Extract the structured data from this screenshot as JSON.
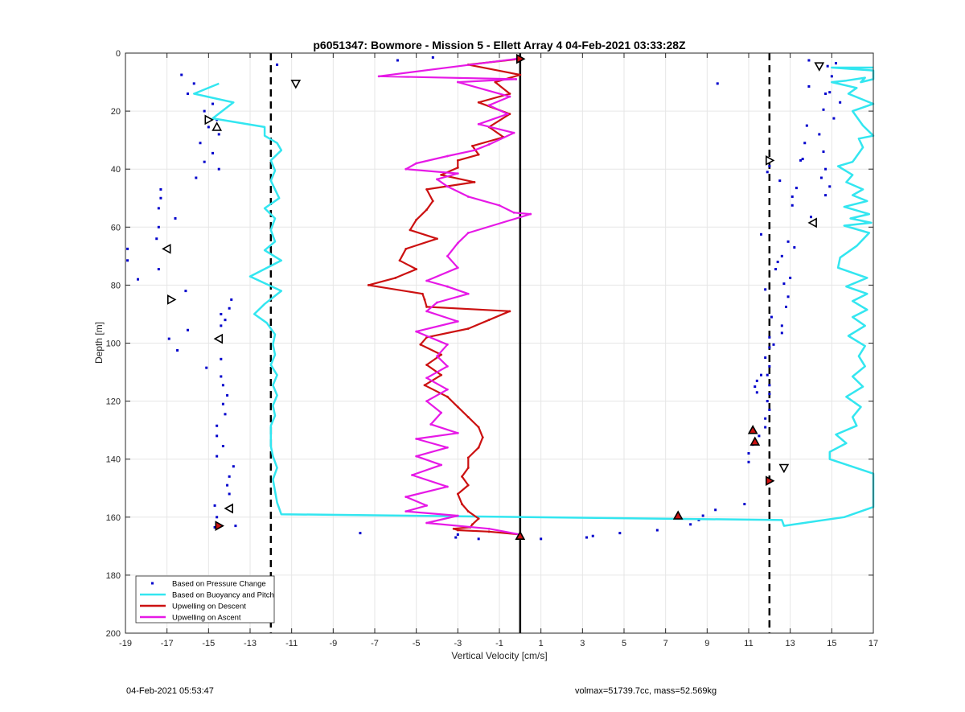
{
  "chart_data": {
    "type": "line",
    "title": "p6051347: Bowmore - Mission 5 - Ellett Array 4 04-Feb-2021 03:33:28Z",
    "xlabel": "Vertical Velocity [cm/s]",
    "ylabel": "Depth [m]",
    "xlim": [
      -19,
      17
    ],
    "ylim": [
      0,
      200
    ],
    "y_reversed": true,
    "grid": true,
    "xticks": [
      -19,
      -17,
      -15,
      -13,
      -11,
      -9,
      -7,
      -5,
      -3,
      -1,
      1,
      3,
      5,
      7,
      9,
      11,
      13,
      15,
      17
    ],
    "yticks": [
      0,
      20,
      40,
      60,
      80,
      100,
      120,
      140,
      160,
      180,
      200
    ],
    "legend_position": "bottom-left",
    "colors": {
      "pressure": "#0000cc",
      "buoyancy": "#33e6f0",
      "descent": "#cc1111",
      "ascent": "#e619e6",
      "reference": "#000000"
    },
    "reference_lines": [
      {
        "x": 0,
        "style": "solid"
      },
      {
        "x": -12,
        "style": "dashed"
      },
      {
        "x": 12,
        "style": "dashed"
      }
    ],
    "series": [
      {
        "name": "Based on Pressure Change",
        "style": "dots",
        "x": [
          -11.7,
          -16.3,
          -15.7,
          -16.0,
          -14.8,
          -15.2,
          -14.6,
          -15.0,
          -14.5,
          -15.4,
          -14.8,
          -15.2,
          -14.5,
          -15.6,
          -17.3,
          -17.3,
          -17.4,
          -16.6,
          -17.4,
          -17.5,
          -18.9,
          -18.9,
          -17.4,
          -18.4,
          -13.9,
          -16.1,
          -14.0,
          -14.4,
          -14.2,
          -14.4,
          -16.0,
          -16.9,
          -16.5,
          -14.4,
          -15.1,
          -14.4,
          -14.3,
          -14.1,
          -14.3,
          -14.2,
          -14.6,
          -14.6,
          -14.3,
          -14.6,
          -13.8,
          -14.0,
          -14.1,
          -14.0,
          -14.7,
          -14.6,
          -13.7,
          -7.7,
          -3.1,
          -3.0,
          -2.0,
          1.0,
          3.2,
          3.5,
          4.8,
          6.6,
          8.2,
          8.6,
          8.8,
          9.4,
          10.8,
          11.0,
          11.0,
          11.2,
          11.5,
          11.8,
          11.8,
          12.0,
          11.9,
          12.0,
          12.0,
          11.9,
          12.0,
          11.8,
          11.6,
          11.4,
          11.3,
          11.4,
          12.0,
          12.2,
          12.0,
          12.6,
          12.6,
          12.1,
          12.8,
          12.9,
          11.8,
          12.7,
          13.0,
          12.3,
          12.4,
          12.6,
          13.2,
          12.9,
          11.6,
          12.5,
          11.9,
          12.0,
          13.5,
          13.3,
          13.1,
          13.1,
          14.0,
          14.7,
          14.9,
          14.5,
          14.7,
          13.6,
          14.6,
          13.7,
          14.4,
          13.8,
          15.1,
          14.6,
          15.4,
          14.7,
          13.9,
          9.5,
          13.9,
          15.0,
          14.8,
          15.2,
          14.9,
          -5.9,
          -4.2,
          -14.7
        ],
        "y": [
          4.0,
          7.5,
          10.5,
          14.0,
          17.5,
          20.0,
          23.0,
          25.5,
          28.0,
          31.0,
          34.5,
          37.5,
          40.0,
          43.0,
          47.0,
          50.0,
          53.5,
          57.0,
          60.0,
          64.0,
          67.5,
          71.5,
          74.5,
          78.0,
          85.0,
          82.0,
          88.0,
          90.0,
          92.0,
          94.0,
          95.5,
          98.5,
          102.5,
          105.5,
          108.5,
          111.5,
          114.5,
          118.0,
          121.0,
          124.5,
          128.5,
          132.0,
          135.5,
          139.0,
          142.5,
          146.0,
          149.0,
          152.0,
          156.0,
          160.0,
          163.0,
          165.5,
          167.0,
          166.0,
          167.5,
          167.5,
          167.0,
          166.5,
          165.5,
          164.5,
          162.5,
          161.0,
          159.5,
          157.5,
          155.5,
          141.0,
          138.0,
          135.0,
          132.0,
          129.0,
          126.0,
          123.0,
          120.0,
          117.5,
          114.5,
          111.0,
          108.0,
          105.0,
          111.0,
          113.0,
          115.0,
          117.0,
          101.5,
          100.5,
          98.0,
          96.5,
          94.0,
          91.0,
          87.5,
          84.0,
          81.5,
          79.5,
          77.5,
          74.5,
          72.0,
          70.0,
          67.0,
          65.0,
          62.5,
          44.0,
          41.0,
          39.0,
          37.0,
          46.5,
          49.5,
          52.5,
          56.5,
          49.0,
          46.0,
          43.0,
          40.0,
          36.5,
          34.0,
          31.0,
          28.0,
          25.0,
          22.5,
          19.5,
          17.0,
          14.0,
          11.5,
          10.5,
          2.5,
          8.0,
          4.5,
          3.5,
          13.5,
          2.5,
          1.5,
          163.5
        ]
      },
      {
        "name": "Based on Buoyancy and Pitch",
        "style": "line",
        "x": [
          -14.5,
          -15.7,
          -13.8,
          -14.8,
          -12.3,
          -12.3,
          -11.7,
          -11.5,
          -12.0,
          -11.8,
          -12.0,
          -11.8,
          -11.6,
          -12.3,
          -11.8,
          -12.0,
          -11.8,
          -12.3,
          -11.5,
          -13.0,
          -11.5,
          -12.3,
          -12.8,
          -12.2,
          -11.8,
          -11.9,
          -11.8,
          -12.0,
          -11.7,
          -11.9,
          -11.7,
          -11.9,
          -11.8,
          -12.0,
          -12.0,
          -12.0,
          -11.9,
          -11.7,
          -11.9,
          -11.8,
          -11.7,
          -11.5,
          12.6,
          12.7,
          15.6,
          17.0,
          17.0,
          14.9,
          14.9,
          15.7,
          15.2,
          16.2,
          16.0,
          16.4,
          15.7,
          16.5,
          16.0,
          16.6,
          16.3,
          16.6,
          15.8,
          16.6,
          16.0,
          16.7,
          16.0,
          16.7,
          15.7,
          16.7,
          15.3,
          15.4,
          16.2,
          16.8,
          15.6,
          16.9,
          15.9,
          16.8,
          15.6,
          16.7,
          16.0,
          16.5,
          15.7,
          16.0,
          15.3,
          16.0,
          16.1,
          16.5,
          16.3,
          17.0,
          16.5,
          16.0,
          17.0,
          15.8,
          16.2,
          15.0,
          15.7,
          16.6,
          16.4,
          17.0,
          17.0,
          15.0,
          15.2,
          17.0
        ],
        "y": [
          10.5,
          14.0,
          17.0,
          22.5,
          25.5,
          28.5,
          31.0,
          33.5,
          37.0,
          40.5,
          44.0,
          47.0,
          50.0,
          53.5,
          57.0,
          61.0,
          65.0,
          68.0,
          71.5,
          77.0,
          82.0,
          86.5,
          90.0,
          93.0,
          97.0,
          100.5,
          104.0,
          107.5,
          111.0,
          114.5,
          118.0,
          121.5,
          125.0,
          128.5,
          132.0,
          135.5,
          139.0,
          143.0,
          147.0,
          151.0,
          155.0,
          159.0,
          161.0,
          163.0,
          160.0,
          156.5,
          145.0,
          140.0,
          137.5,
          134.5,
          131.5,
          128.5,
          125.5,
          122.0,
          118.5,
          115.0,
          111.5,
          108.0,
          104.5,
          101.0,
          97.5,
          94.0,
          91.0,
          88.5,
          85.5,
          83.0,
          80.5,
          77.5,
          74.0,
          70.5,
          66.5,
          62.0,
          59.5,
          58.5,
          57.0,
          55.5,
          53.0,
          51.0,
          49.0,
          47.0,
          44.5,
          42.0,
          39.0,
          37.5,
          36.5,
          32.5,
          29.5,
          28.5,
          25.0,
          20.0,
          17.5,
          14.0,
          12.0,
          10.0,
          9.5,
          8.5,
          10.0,
          9.0,
          6.0,
          5.0,
          5.0,
          5.0
        ]
      },
      {
        "name": "Upwelling on Descent",
        "style": "line",
        "x": [
          0.0,
          -2.5,
          0.0,
          -1.2,
          -0.5,
          -2.0,
          -0.5,
          -1.5,
          -0.8,
          -2.3,
          -2.0,
          -3.0,
          -3.0,
          -3.8,
          -2.2,
          -4.5,
          -4.2,
          -4.5,
          -5.0,
          -5.3,
          -4.0,
          -5.5,
          -5.8,
          -5.0,
          -6.0,
          -7.3,
          -4.7,
          -4.6,
          -4.5,
          -0.5,
          -1.5,
          -2.5,
          -4.5,
          -4.8,
          -3.8,
          -4.5,
          -3.8,
          -4.6,
          -3.5,
          -3.0,
          -2.5,
          -2.0,
          -1.8,
          -2.0,
          -2.5,
          -2.5,
          -2.8,
          -2.5,
          -3.0,
          -2.8,
          -2.5,
          -2.0,
          -2.3,
          -2.4,
          -3.2,
          -3.0,
          -1.5,
          0.0
        ],
        "y": [
          2.0,
          4.0,
          7.5,
          10.0,
          14.0,
          17.0,
          21.0,
          25.5,
          29.0,
          32.0,
          35.0,
          37.0,
          39.5,
          42.0,
          44.5,
          47.0,
          51.0,
          54.0,
          57.5,
          61.0,
          64.0,
          67.5,
          71.5,
          74.5,
          77.5,
          80.0,
          83.0,
          85.0,
          87.5,
          89.0,
          92.0,
          95.0,
          98.0,
          100.5,
          104.0,
          107.5,
          111.0,
          114.5,
          118.5,
          122.0,
          125.5,
          129.0,
          132.5,
          136.0,
          139.5,
          143.0,
          146.0,
          149.0,
          152.0,
          155.5,
          158.0,
          160.5,
          162.5,
          163.5,
          164.0,
          164.5,
          165.0,
          166.0
        ]
      },
      {
        "name": "Upwelling on Ascent",
        "style": "line",
        "x": [
          -0.2,
          -6.8,
          -0.2,
          -3.0,
          -0.5,
          -1.5,
          -0.6,
          -2.0,
          -0.3,
          -1.5,
          -2.2,
          -3.5,
          -5.0,
          -5.5,
          -3.0,
          -4.0,
          -3.5,
          -2.5,
          -1.0,
          -0.3,
          0.5,
          -2.5,
          -3.0,
          -3.5,
          -3.0,
          -4.5,
          -3.5,
          -2.5,
          -4.0,
          -4.5,
          -3.0,
          -5.0,
          -3.5,
          -4.0,
          -3.5,
          -4.5,
          -3.5,
          -4.5,
          -3.8,
          -4.3,
          -3.0,
          -5.0,
          -3.5,
          -5.0,
          -3.8,
          -5.2,
          -3.5,
          -5.5,
          -4.5,
          -5.5,
          -3.0,
          -4.5,
          -1.5,
          0.0
        ],
        "y": [
          2.0,
          8.0,
          9.0,
          10.0,
          15.0,
          18.0,
          21.0,
          24.5,
          27.5,
          31.5,
          33.5,
          35.5,
          38.0,
          40.0,
          41.5,
          43.5,
          46.0,
          49.5,
          52.5,
          55.0,
          55.5,
          62.0,
          65.5,
          70.0,
          74.0,
          78.5,
          80.5,
          83.0,
          86.0,
          89.0,
          92.5,
          96.0,
          100.5,
          104.5,
          108.0,
          112.0,
          116.0,
          120.0,
          124.0,
          128.0,
          131.0,
          133.0,
          136.0,
          139.0,
          142.0,
          145.5,
          149.5,
          153.0,
          156.0,
          158.0,
          159.5,
          162.0,
          164.0,
          166.0
        ]
      }
    ],
    "markers": [
      {
        "x": 0.0,
        "y": 2,
        "shape": "tri-right",
        "fill": "#cc1111"
      },
      {
        "x": -10.8,
        "y": 10.5,
        "shape": "tri-down",
        "fill": "none"
      },
      {
        "x": -15.0,
        "y": 23,
        "shape": "tri-right",
        "fill": "none"
      },
      {
        "x": -14.6,
        "y": 25.5,
        "shape": "tri-up",
        "fill": "none"
      },
      {
        "x": -17.0,
        "y": 67.5,
        "shape": "tri-left",
        "fill": "none"
      },
      {
        "x": -16.8,
        "y": 85,
        "shape": "tri-right",
        "fill": "none"
      },
      {
        "x": -14.5,
        "y": 98.5,
        "shape": "tri-left",
        "fill": "none"
      },
      {
        "x": -14.0,
        "y": 157,
        "shape": "tri-left",
        "fill": "none"
      },
      {
        "x": -14.5,
        "y": 163,
        "shape": "tri-right",
        "fill": "#cc1111"
      },
      {
        "x": 0.0,
        "y": 166.5,
        "shape": "tri-up",
        "fill": "#cc1111"
      },
      {
        "x": 7.6,
        "y": 159.5,
        "shape": "tri-up",
        "fill": "#cc1111"
      },
      {
        "x": 11.2,
        "y": 130,
        "shape": "tri-up",
        "fill": "#cc1111"
      },
      {
        "x": 11.3,
        "y": 134,
        "shape": "tri-up",
        "fill": "#cc1111"
      },
      {
        "x": 12.7,
        "y": 143,
        "shape": "tri-down",
        "fill": "none"
      },
      {
        "x": 12.0,
        "y": 147.5,
        "shape": "tri-right",
        "fill": "#cc1111"
      },
      {
        "x": 12.0,
        "y": 37,
        "shape": "tri-right",
        "fill": "none"
      },
      {
        "x": 14.1,
        "y": 58.5,
        "shape": "tri-left",
        "fill": "none"
      },
      {
        "x": 14.4,
        "y": 4.5,
        "shape": "tri-down",
        "fill": "none"
      }
    ]
  },
  "footer": {
    "left": "04-Feb-2021 05:53:47",
    "right": "volmax=51739.7cc, mass=52.569kg"
  }
}
